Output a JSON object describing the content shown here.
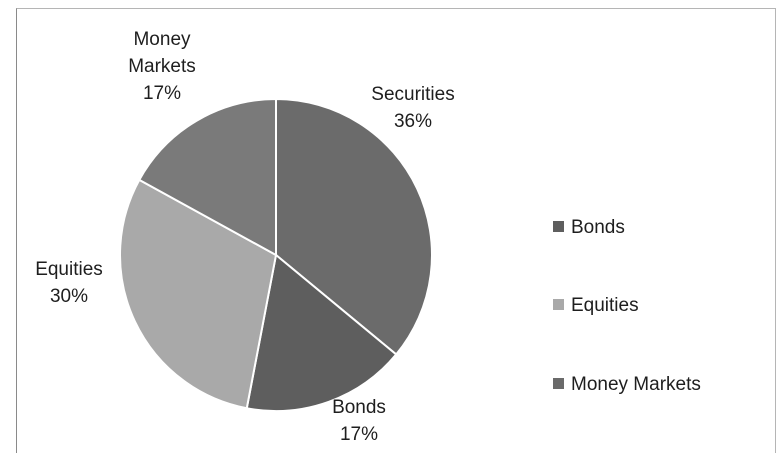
{
  "chart_data": {
    "type": "pie",
    "slices": [
      {
        "label_lines": [
          "Securities"
        ],
        "percent_label": "36%",
        "value": 36,
        "color": "#6b6b6b"
      },
      {
        "label_lines": [
          "Bonds"
        ],
        "percent_label": "17%",
        "value": 17,
        "color": "#5e5e5e"
      },
      {
        "label_lines": [
          "Equities"
        ],
        "percent_label": "30%",
        "value": 30,
        "color": "#a9a9a9"
      },
      {
        "label_lines": [
          "Money",
          "Markets"
        ],
        "percent_label": "17%",
        "value": 17,
        "color": "#7a7a7a"
      }
    ],
    "legend": {
      "placement": "right",
      "entries": [
        {
          "label": "Bonds",
          "color": "#5e5e5e"
        },
        {
          "label": "Equities",
          "color": "#a9a9a9"
        },
        {
          "label": "Money Markets",
          "color": "#6a6a6a"
        }
      ]
    }
  }
}
